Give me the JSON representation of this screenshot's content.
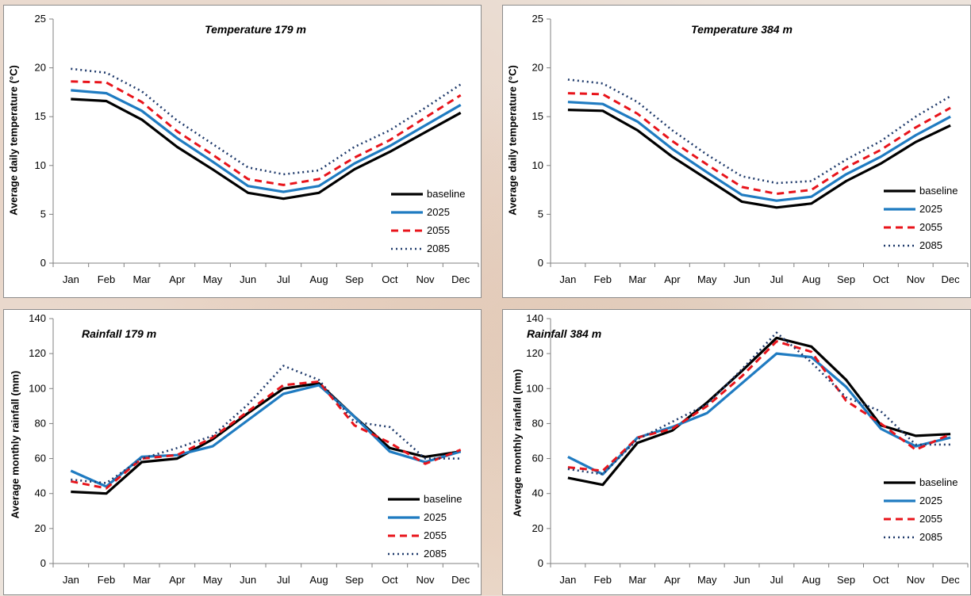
{
  "colors": {
    "baseline": "#000000",
    "2025": "#1f7bc1",
    "2055": "#e8141b",
    "2085": "#1f3a6b",
    "axis": "#808080"
  },
  "chart_data": [
    {
      "type": "line",
      "title": "Temperature 179 m",
      "ylabel": "Average daily temperature (°C)",
      "xlabel": "",
      "categories": [
        "Jan",
        "Feb",
        "Mar",
        "Apr",
        "May",
        "Jun",
        "Jul",
        "Aug",
        "Sep",
        "Oct",
        "Nov",
        "Dec"
      ],
      "ylim": [
        0,
        25
      ],
      "yticks": [
        0,
        5,
        10,
        15,
        20,
        25
      ],
      "legend": "right",
      "series": [
        {
          "name": "baseline",
          "values": [
            16.8,
            16.6,
            14.7,
            11.9,
            9.6,
            7.2,
            6.6,
            7.2,
            9.6,
            11.4,
            13.4,
            15.4
          ]
        },
        {
          "name": "2025",
          "values": [
            17.7,
            17.4,
            15.6,
            12.8,
            10.4,
            7.9,
            7.3,
            7.9,
            10.2,
            12.0,
            14.1,
            16.2
          ]
        },
        {
          "name": "2055",
          "values": [
            18.6,
            18.5,
            16.5,
            13.5,
            11.1,
            8.6,
            8.0,
            8.6,
            10.8,
            12.6,
            14.9,
            17.2
          ]
        },
        {
          "name": "2085",
          "values": [
            19.9,
            19.5,
            17.6,
            14.6,
            12.2,
            9.8,
            9.1,
            9.5,
            11.9,
            13.6,
            15.9,
            18.3
          ]
        }
      ]
    },
    {
      "type": "line",
      "title": "Temperature 384 m",
      "ylabel": "Average daily temperature (°C)",
      "xlabel": "",
      "categories": [
        "Jan",
        "Feb",
        "Mar",
        "Apr",
        "May",
        "Jun",
        "Jul",
        "Aug",
        "Sep",
        "Oct",
        "Nov",
        "Dec"
      ],
      "ylim": [
        0,
        25
      ],
      "yticks": [
        0,
        5,
        10,
        15,
        20,
        25
      ],
      "legend": "right",
      "series": [
        {
          "name": "baseline",
          "values": [
            15.7,
            15.6,
            13.6,
            10.9,
            8.6,
            6.3,
            5.7,
            6.1,
            8.4,
            10.2,
            12.4,
            14.1
          ]
        },
        {
          "name": "2025",
          "values": [
            16.5,
            16.3,
            14.5,
            11.7,
            9.3,
            7.0,
            6.4,
            6.8,
            9.1,
            10.9,
            13.1,
            15.0
          ]
        },
        {
          "name": "2055",
          "values": [
            17.4,
            17.3,
            15.3,
            12.5,
            10.1,
            7.8,
            7.1,
            7.5,
            9.8,
            11.6,
            13.9,
            15.9
          ]
        },
        {
          "name": "2085",
          "values": [
            18.8,
            18.4,
            16.5,
            13.6,
            11.1,
            8.9,
            8.2,
            8.4,
            10.6,
            12.5,
            15.0,
            17.1
          ]
        }
      ]
    },
    {
      "type": "line",
      "title": "Rainfall 179 m",
      "ylabel": "Average monthly rainfall (mm)",
      "xlabel": "",
      "categories": [
        "Jan",
        "Feb",
        "Mar",
        "Apr",
        "May",
        "Jun",
        "Jul",
        "Aug",
        "Sep",
        "Oct",
        "Nov",
        "Dec"
      ],
      "ylim": [
        0,
        140
      ],
      "yticks": [
        0,
        20,
        40,
        60,
        80,
        100,
        120,
        140
      ],
      "legend": "right",
      "series": [
        {
          "name": "baseline",
          "values": [
            41,
            40,
            58,
            60,
            71,
            86,
            100,
            103,
            84,
            66,
            61,
            64
          ]
        },
        {
          "name": "2025",
          "values": [
            53,
            44,
            61,
            62,
            67,
            82,
            97,
            102,
            84,
            64,
            58,
            64
          ]
        },
        {
          "name": "2055",
          "values": [
            47,
            43,
            60,
            62,
            72,
            87,
            102,
            104,
            79,
            69,
            57,
            65
          ]
        },
        {
          "name": "2085",
          "values": [
            48,
            46,
            60,
            66,
            73,
            91,
            113,
            105,
            81,
            78,
            60,
            60
          ]
        }
      ]
    },
    {
      "type": "line",
      "title": "Rainfall 384 m",
      "ylabel": "Average monthly rainfall (mm)",
      "xlabel": "",
      "categories": [
        "Jan",
        "Feb",
        "Mar",
        "Apr",
        "May",
        "Jun",
        "Jul",
        "Aug",
        "Sep",
        "Oct",
        "Nov",
        "Dec"
      ],
      "ylim": [
        0,
        140
      ],
      "yticks": [
        0,
        20,
        40,
        60,
        80,
        100,
        120,
        140
      ],
      "legend": "right",
      "series": [
        {
          "name": "baseline",
          "values": [
            49,
            45,
            69,
            76,
            92,
            110,
            129,
            124,
            105,
            79,
            73,
            74
          ]
        },
        {
          "name": "2025",
          "values": [
            61,
            51,
            72,
            78,
            86,
            103,
            120,
            118,
            101,
            77,
            67,
            72
          ]
        },
        {
          "name": "2055",
          "values": [
            55,
            53,
            72,
            77,
            90,
            107,
            127,
            121,
            93,
            80,
            65,
            74
          ]
        },
        {
          "name": "2085",
          "values": [
            54,
            51,
            71,
            81,
            91,
            111,
            132,
            115,
            95,
            87,
            68,
            68
          ]
        }
      ]
    }
  ]
}
